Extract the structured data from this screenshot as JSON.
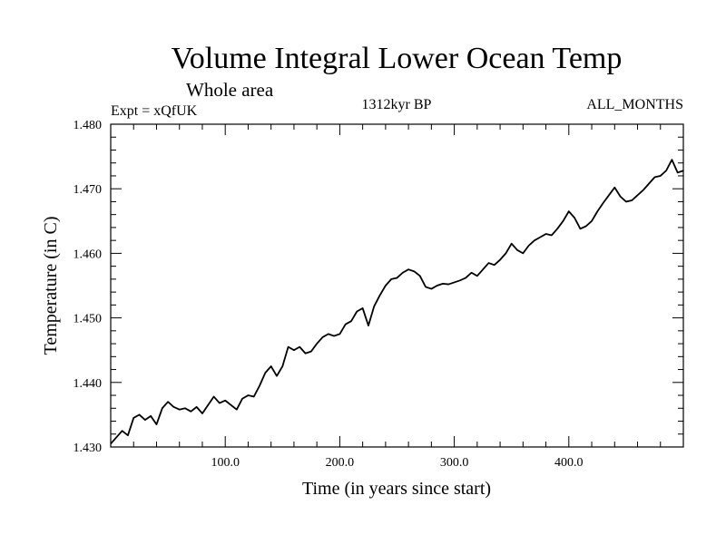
{
  "chart_data": {
    "type": "line",
    "title": "Volume Integral Lower Ocean Temp",
    "subtitle": "Whole area",
    "annotations": {
      "left": "Expt = xQfUK",
      "center": "1312kyr BP",
      "right": "ALL_MONTHS"
    },
    "xlabel": "Time (in years since start)",
    "ylabel": "Temperature (in C)",
    "xlim": [
      0,
      500
    ],
    "ylim": [
      1.43,
      1.48
    ],
    "xticks": [
      100,
      200,
      300,
      400
    ],
    "xtick_labels": [
      "100.0",
      "200.0",
      "300.0",
      "400.0"
    ],
    "yticks": [
      1.43,
      1.44,
      1.45,
      1.46,
      1.47,
      1.48
    ],
    "ytick_labels": [
      "1.430",
      "1.440",
      "1.450",
      "1.460",
      "1.470",
      "1.480"
    ],
    "series": [
      {
        "name": "Temperature",
        "x": [
          0,
          5,
          10,
          15,
          20,
          25,
          30,
          35,
          40,
          45,
          50,
          55,
          60,
          65,
          70,
          75,
          80,
          85,
          90,
          95,
          100,
          105,
          110,
          115,
          120,
          125,
          130,
          135,
          140,
          145,
          150,
          155,
          160,
          165,
          170,
          175,
          180,
          185,
          190,
          195,
          200,
          205,
          210,
          215,
          220,
          225,
          230,
          235,
          240,
          245,
          250,
          255,
          260,
          265,
          270,
          275,
          280,
          285,
          290,
          295,
          300,
          305,
          310,
          315,
          320,
          325,
          330,
          335,
          340,
          345,
          350,
          355,
          360,
          365,
          370,
          375,
          380,
          385,
          390,
          395,
          400,
          405,
          410,
          415,
          420,
          425,
          430,
          435,
          440,
          445,
          450,
          455,
          460,
          465,
          470,
          475,
          480,
          485,
          490,
          495,
          500
        ],
        "values": [
          1.4305,
          1.4315,
          1.4325,
          1.4318,
          1.4345,
          1.435,
          1.4342,
          1.4348,
          1.4335,
          1.436,
          1.437,
          1.4362,
          1.4358,
          1.436,
          1.4355,
          1.4362,
          1.4352,
          1.4365,
          1.4378,
          1.4368,
          1.4372,
          1.4365,
          1.4358,
          1.4375,
          1.438,
          1.4378,
          1.4395,
          1.4415,
          1.4425,
          1.441,
          1.4425,
          1.4455,
          1.445,
          1.4455,
          1.4445,
          1.4448,
          1.446,
          1.447,
          1.4475,
          1.4472,
          1.4475,
          1.449,
          1.4495,
          1.451,
          1.4515,
          1.4488,
          1.4518,
          1.4535,
          1.455,
          1.456,
          1.4562,
          1.457,
          1.4575,
          1.4572,
          1.4565,
          1.4548,
          1.4545,
          1.455,
          1.4553,
          1.4552,
          1.4555,
          1.4558,
          1.4562,
          1.457,
          1.4565,
          1.4575,
          1.4585,
          1.4582,
          1.459,
          1.46,
          1.4615,
          1.4605,
          1.46,
          1.4612,
          1.462,
          1.4625,
          1.463,
          1.4628,
          1.4638,
          1.465,
          1.4665,
          1.4655,
          1.4638,
          1.4642,
          1.465,
          1.4665,
          1.4678,
          1.469,
          1.4702,
          1.4688,
          1.468,
          1.4682,
          1.469,
          1.4698,
          1.4708,
          1.4718,
          1.472,
          1.4728,
          1.4745,
          1.4725,
          1.4728
        ]
      }
    ]
  }
}
